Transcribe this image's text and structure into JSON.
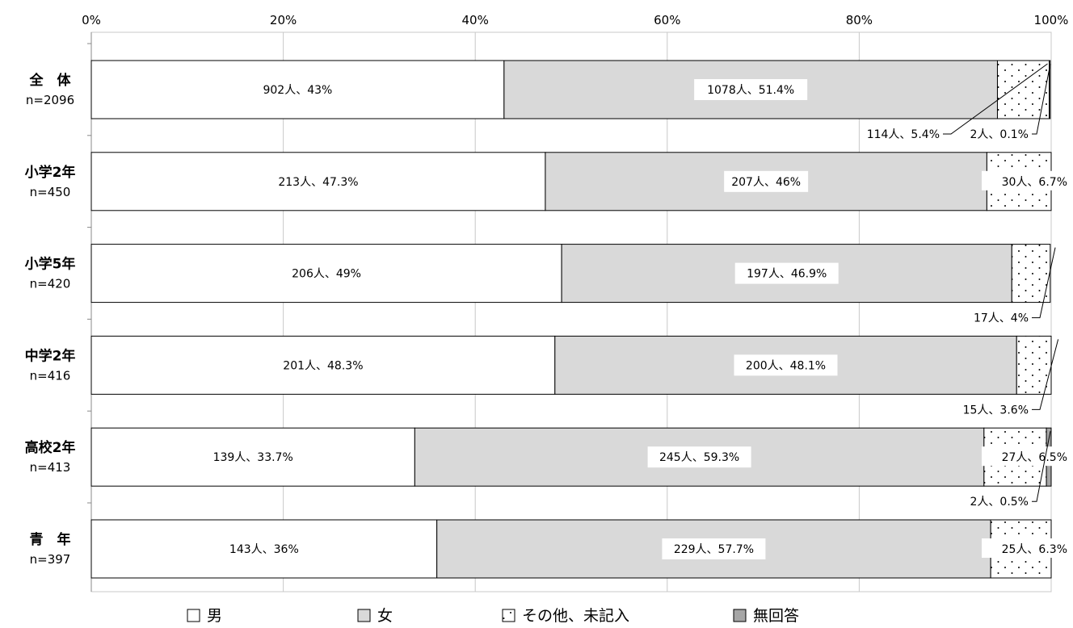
{
  "chart_data": {
    "type": "bar",
    "orientation": "horizontal",
    "stacked": "percent",
    "xlim": [
      0,
      100
    ],
    "x_ticks": [
      "0%",
      "20%",
      "40%",
      "60%",
      "80%",
      "100%"
    ],
    "grid": true,
    "legend_position": "bottom",
    "categories": [
      {
        "label": "全　体",
        "n": "n=2096"
      },
      {
        "label": "小学2年",
        "n": "n=450"
      },
      {
        "label": "小学5年",
        "n": "n=420"
      },
      {
        "label": "中学2年",
        "n": "n=416"
      },
      {
        "label": "高校2年",
        "n": "n=413"
      },
      {
        "label": "青　年",
        "n": "n=397"
      }
    ],
    "series": [
      {
        "name": "男",
        "color": "#ffffff",
        "pattern": "none",
        "values": [
          43,
          47.3,
          49,
          48.3,
          33.7,
          36
        ],
        "labels": [
          "902人、43%",
          "213人、47.3%",
          "206人、49%",
          "201人、48.3%",
          "139人、33.7%",
          "143人、36%"
        ]
      },
      {
        "name": "女",
        "color": "#d9d9d9",
        "pattern": "none",
        "values": [
          51.4,
          46,
          46.9,
          48.1,
          59.3,
          57.7
        ],
        "labels": [
          "1078人、51.4%",
          "207人、46%",
          "197人、46.9%",
          "200人、48.1%",
          "245人、59.3%",
          "229人、57.7%"
        ]
      },
      {
        "name": "その他、未記入",
        "color": "#ffffff",
        "pattern": "dots",
        "values": [
          5.4,
          6.7,
          4,
          3.6,
          6.5,
          6.3
        ],
        "labels": [
          "114人、5.4%",
          "30人、6.7%",
          "17人、4%",
          "15人、3.6%",
          "27人、6.5%",
          "25人、6.3%"
        ]
      },
      {
        "name": "無回答",
        "color": "#a6a6a6",
        "pattern": "none",
        "values": [
          0.1,
          0,
          0,
          0,
          0.5,
          0
        ],
        "labels": [
          "2人、0.1%",
          "",
          "",
          "",
          "2人、0.5%",
          ""
        ]
      }
    ]
  }
}
